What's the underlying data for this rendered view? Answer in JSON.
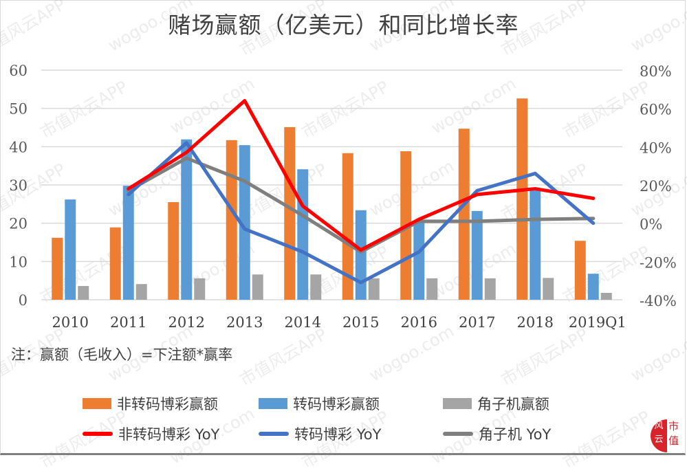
{
  "title": "赌场赢额（亿美元）和同比增长率",
  "note": "注：赢额（毛收入）=下注额*赢率",
  "colors": {
    "non_rolling_bar": "#ed7d31",
    "rolling_bar": "#5b9bd5",
    "slot_bar": "#a5a5a5",
    "non_rolling_line": "#ff0000",
    "rolling_line": "#4472c4",
    "slot_line": "#7f7f7f",
    "grid": "#d9d9d9"
  },
  "legend": {
    "items": [
      {
        "label": "非转码博彩赢额",
        "type": "bar",
        "color": "#ed7d31"
      },
      {
        "label": "转码博彩赢额",
        "type": "bar",
        "color": "#5b9bd5"
      },
      {
        "label": "角子机赢额",
        "type": "bar",
        "color": "#a5a5a5"
      },
      {
        "label": "非转码博彩 YoY",
        "type": "line",
        "color": "#ff0000"
      },
      {
        "label": "转码博彩 YoY",
        "type": "line",
        "color": "#4472c4"
      },
      {
        "label": "角子机 YoY",
        "type": "line",
        "color": "#7f7f7f"
      }
    ]
  },
  "watermark": {
    "texts": [
      "市值风云APP",
      "wogoo.com"
    ]
  },
  "logo": {
    "left_text": "风云",
    "right_text": "市值"
  },
  "chart_data": {
    "type": "bar+line",
    "title": "赌场赢额（亿美元）和同比增长率",
    "categories": [
      "2010",
      "2011",
      "2012",
      "2013",
      "2014",
      "2015",
      "2016",
      "2017",
      "2018",
      "2019Q1"
    ],
    "y_left": {
      "ticks": [
        "0",
        "10",
        "20",
        "30",
        "40",
        "50",
        "60"
      ],
      "range": [
        0,
        60
      ]
    },
    "y_right": {
      "ticks": [
        "-40%",
        "-20%",
        "0%",
        "20%",
        "40%",
        "60%",
        "80%"
      ],
      "range": [
        -40,
        80
      ]
    },
    "grid": true,
    "legend_position": "bottom",
    "series": [
      {
        "name": "非转码博彩赢额",
        "type": "bar",
        "axis": "left",
        "values": [
          16.2,
          18.9,
          25.5,
          41.7,
          45.1,
          38.3,
          38.8,
          44.7,
          52.6,
          15.4
        ]
      },
      {
        "name": "转码博彩赢额",
        "type": "bar",
        "axis": "left",
        "values": [
          26.2,
          29.8,
          41.9,
          40.4,
          34.1,
          23.4,
          20.3,
          23.2,
          28.7,
          6.8
        ]
      },
      {
        "name": "角子机赢额",
        "type": "bar",
        "axis": "left",
        "values": [
          3.6,
          4.1,
          5.6,
          6.6,
          6.6,
          5.6,
          5.6,
          5.6,
          5.7,
          1.8
        ]
      },
      {
        "name": "非转码博彩 YoY",
        "type": "line",
        "axis": "right",
        "values": [
          null,
          18,
          37,
          64,
          9,
          -14,
          2,
          15,
          18,
          13
        ]
      },
      {
        "name": "转码博彩 YoY",
        "type": "line",
        "axis": "right",
        "values": [
          null,
          15,
          42,
          -3,
          -15,
          -31,
          -15,
          17,
          26,
          0
        ]
      },
      {
        "name": "角子机 YoY",
        "type": "line",
        "axis": "right",
        "values": [
          null,
          17,
          34,
          22,
          4,
          -15,
          1,
          1,
          2,
          2.5
        ]
      }
    ],
    "note": "注：赢额（毛收入）=下注额*赢率"
  }
}
